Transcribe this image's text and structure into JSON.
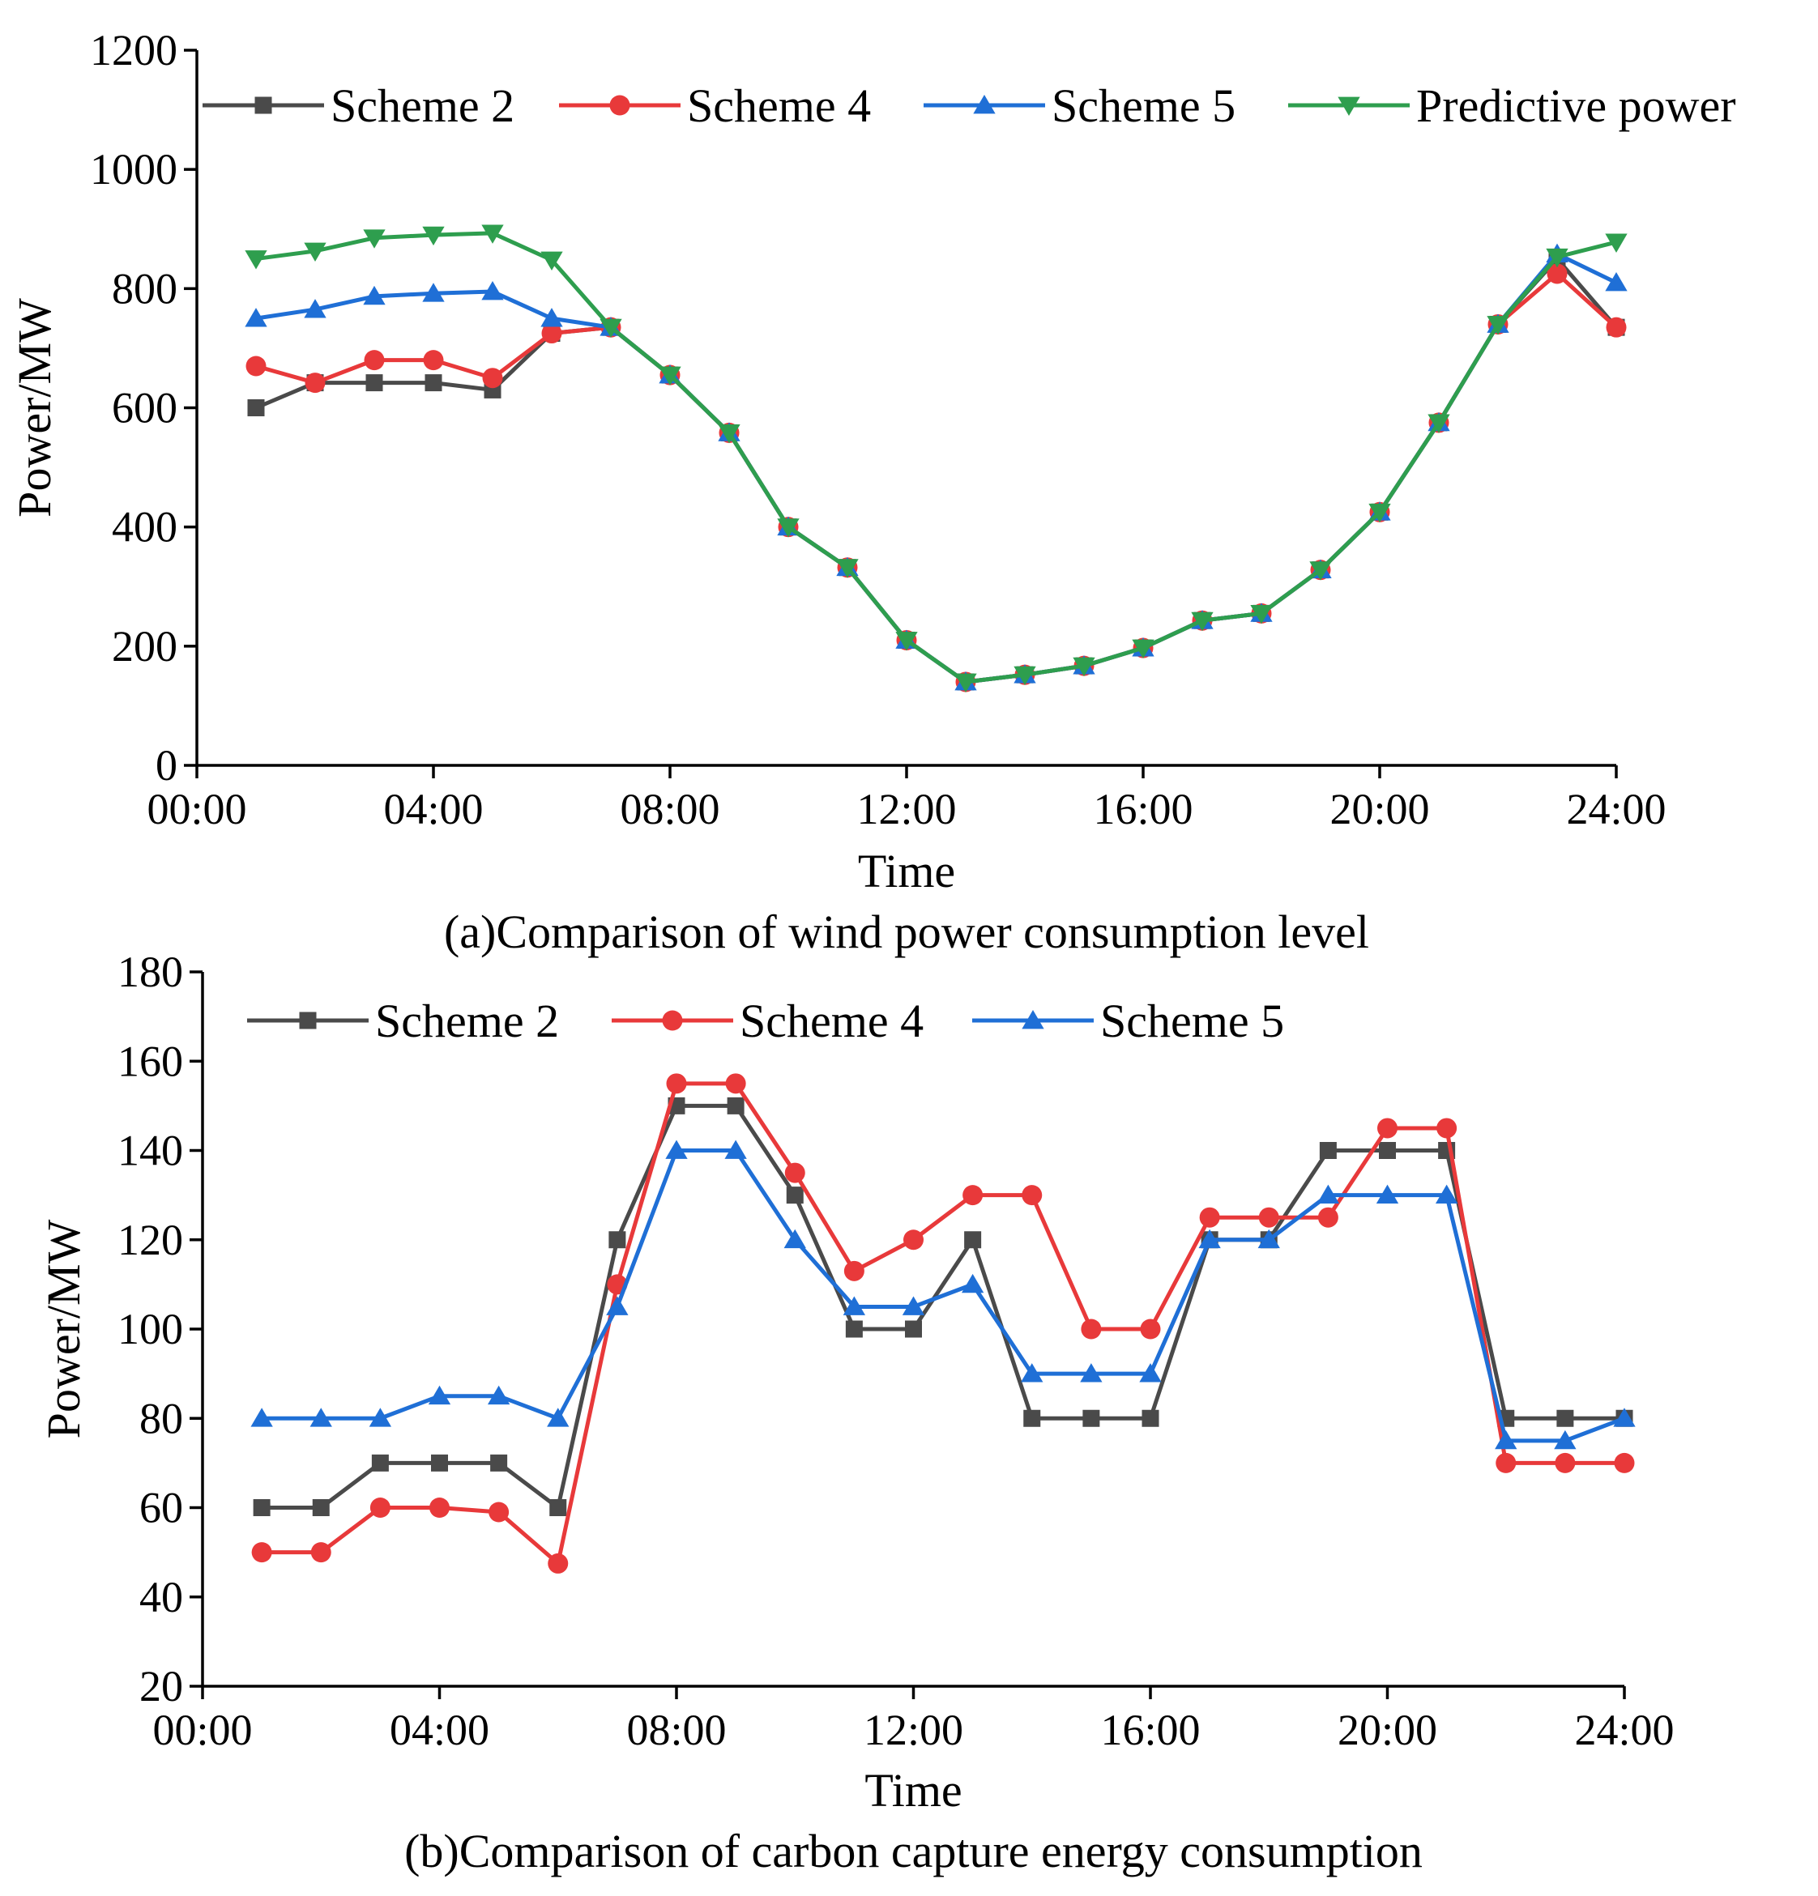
{
  "chart_data": [
    {
      "type": "line",
      "caption": "(a)Comparison of wind power consumption level",
      "xlabel": "Time",
      "ylabel": "Power/MW",
      "xlim": [
        0,
        24
      ],
      "ylim": [
        0,
        1200
      ],
      "xticks": [
        0,
        4,
        8,
        12,
        16,
        20,
        24
      ],
      "xtick_labels": [
        "00:00",
        "04:00",
        "08:00",
        "12:00",
        "16:00",
        "20:00",
        "24:00"
      ],
      "yticks": [
        0,
        200,
        400,
        600,
        800,
        1000,
        1200
      ],
      "ytick_labels": [
        "0",
        "200",
        "400",
        "600",
        "800",
        "1000",
        "1200"
      ],
      "grid": false,
      "legend_position": "top",
      "x": [
        1,
        2,
        3,
        4,
        5,
        6,
        7,
        8,
        9,
        10,
        11,
        12,
        13,
        14,
        15,
        16,
        17,
        18,
        19,
        20,
        21,
        22,
        23,
        24
      ],
      "series": [
        {
          "name": "Scheme 2",
          "color": "#4a4a4a",
          "marker": "square",
          "values": [
            600,
            642,
            642,
            642,
            630,
            725,
            735,
            655,
            558,
            400,
            332,
            210,
            140,
            152,
            167,
            197,
            243,
            255,
            328,
            425,
            575,
            740,
            850,
            735
          ]
        },
        {
          "name": "Scheme 4",
          "color": "#e8393a",
          "marker": "circle",
          "values": [
            670,
            642,
            680,
            680,
            650,
            725,
            735,
            655,
            558,
            400,
            332,
            210,
            140,
            152,
            167,
            197,
            243,
            255,
            328,
            425,
            575,
            740,
            825,
            735
          ]
        },
        {
          "name": "Scheme 5",
          "color": "#1f6fd6",
          "marker": "triangle-up",
          "values": [
            750,
            765,
            787,
            792,
            795,
            750,
            735,
            655,
            558,
            400,
            332,
            210,
            140,
            152,
            167,
            197,
            243,
            255,
            328,
            425,
            575,
            740,
            858,
            810
          ]
        },
        {
          "name": "Predictive power",
          "color": "#2e9e4e",
          "marker": "triangle-down",
          "values": [
            850,
            863,
            885,
            890,
            893,
            848,
            735,
            655,
            558,
            400,
            332,
            210,
            140,
            152,
            167,
            197,
            243,
            255,
            328,
            425,
            575,
            740,
            853,
            878
          ]
        }
      ]
    },
    {
      "type": "line",
      "caption": "(b)Comparison of carbon capture energy consumption",
      "xlabel": "Time",
      "ylabel": "Power/MW",
      "xlim": [
        0,
        24
      ],
      "ylim": [
        20,
        180
      ],
      "xticks": [
        0,
        4,
        8,
        12,
        16,
        20,
        24
      ],
      "xtick_labels": [
        "00:00",
        "04:00",
        "08:00",
        "12:00",
        "16:00",
        "20:00",
        "24:00"
      ],
      "yticks": [
        20,
        40,
        60,
        80,
        100,
        120,
        140,
        160,
        180
      ],
      "ytick_labels": [
        "20",
        "40",
        "60",
        "80",
        "100",
        "120",
        "140",
        "160",
        "180"
      ],
      "grid": false,
      "legend_position": "top",
      "x": [
        1,
        2,
        3,
        4,
        5,
        6,
        7,
        8,
        9,
        10,
        11,
        12,
        13,
        14,
        15,
        16,
        17,
        18,
        19,
        20,
        21,
        22,
        23,
        24
      ],
      "series": [
        {
          "name": "Scheme 2",
          "color": "#4a4a4a",
          "marker": "square",
          "values": [
            60,
            60,
            70,
            70,
            70,
            60,
            120,
            150,
            150,
            130,
            100,
            100,
            120,
            80,
            80,
            80,
            120,
            120,
            140,
            140,
            140,
            80,
            80,
            80
          ]
        },
        {
          "name": "Scheme 4",
          "color": "#e8393a",
          "marker": "circle",
          "values": [
            50,
            50,
            60,
            60,
            59,
            47.5,
            110,
            155,
            155,
            135,
            113,
            120,
            130,
            130,
            100,
            100,
            125,
            125,
            125,
            145,
            145,
            70,
            70,
            70
          ]
        },
        {
          "name": "Scheme 5",
          "color": "#1f6fd6",
          "marker": "triangle-up",
          "values": [
            80,
            80,
            80,
            85,
            85,
            80,
            105,
            140,
            140,
            120,
            105,
            105,
            110,
            90,
            90,
            90,
            120,
            120,
            130,
            130,
            130,
            75,
            75,
            80
          ]
        }
      ]
    }
  ]
}
